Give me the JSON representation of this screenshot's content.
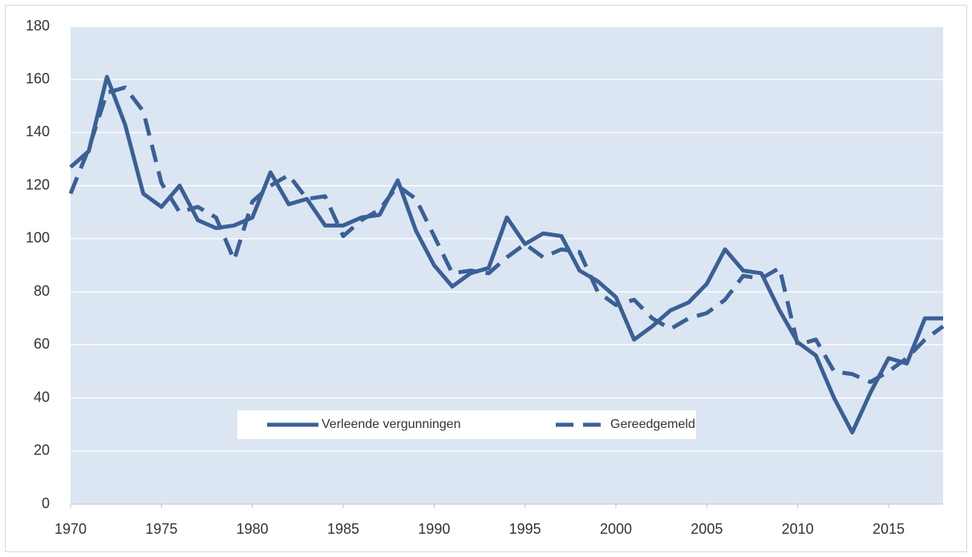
{
  "chart_data": {
    "type": "line",
    "x": [
      1970,
      1971,
      1972,
      1973,
      1974,
      1975,
      1976,
      1977,
      1978,
      1979,
      1980,
      1981,
      1982,
      1983,
      1984,
      1985,
      1986,
      1987,
      1988,
      1989,
      1990,
      1991,
      1992,
      1993,
      1994,
      1995,
      1996,
      1997,
      1998,
      1999,
      2000,
      2001,
      2002,
      2003,
      2004,
      2005,
      2006,
      2007,
      2008,
      2009,
      2010,
      2011,
      2012,
      2013,
      2014,
      2015,
      2016,
      2017,
      2018
    ],
    "series": [
      {
        "name": "Verleende vergunningen",
        "color": "#3a6095",
        "dash": false,
        "values": [
          127,
          133,
          161,
          143,
          117,
          112,
          120,
          107,
          104,
          105,
          108,
          125,
          113,
          115,
          105,
          105,
          108,
          109,
          122,
          103,
          90,
          82,
          87,
          89,
          108,
          98,
          102,
          101,
          88,
          84,
          78,
          62,
          67,
          73,
          76,
          83,
          96,
          88,
          87,
          73,
          61,
          56,
          40,
          27,
          42,
          55,
          53,
          70,
          70
        ]
      },
      {
        "name": "Gereedgemeld",
        "color": "#3a6095",
        "dash": true,
        "values": [
          117,
          134,
          155,
          157,
          148,
          121,
          110,
          112,
          108,
          92,
          114,
          120,
          124,
          115,
          116,
          101,
          107,
          111,
          120,
          115,
          101,
          87,
          88,
          87,
          93,
          98,
          93,
          96,
          95,
          80,
          75,
          77,
          70,
          66,
          70,
          72,
          77,
          86,
          85,
          89,
          60,
          62,
          50,
          49,
          46,
          50,
          55,
          62,
          67
        ]
      }
    ],
    "xlim": [
      1970,
      2018
    ],
    "xticks": [
      1970,
      1975,
      1980,
      1985,
      1990,
      1995,
      2000,
      2005,
      2010,
      2015
    ],
    "ylim": [
      0,
      180
    ],
    "yticks": [
      0,
      20,
      40,
      60,
      80,
      100,
      120,
      140,
      160,
      180
    ],
    "grid": true,
    "legend": "inside-bottom"
  }
}
